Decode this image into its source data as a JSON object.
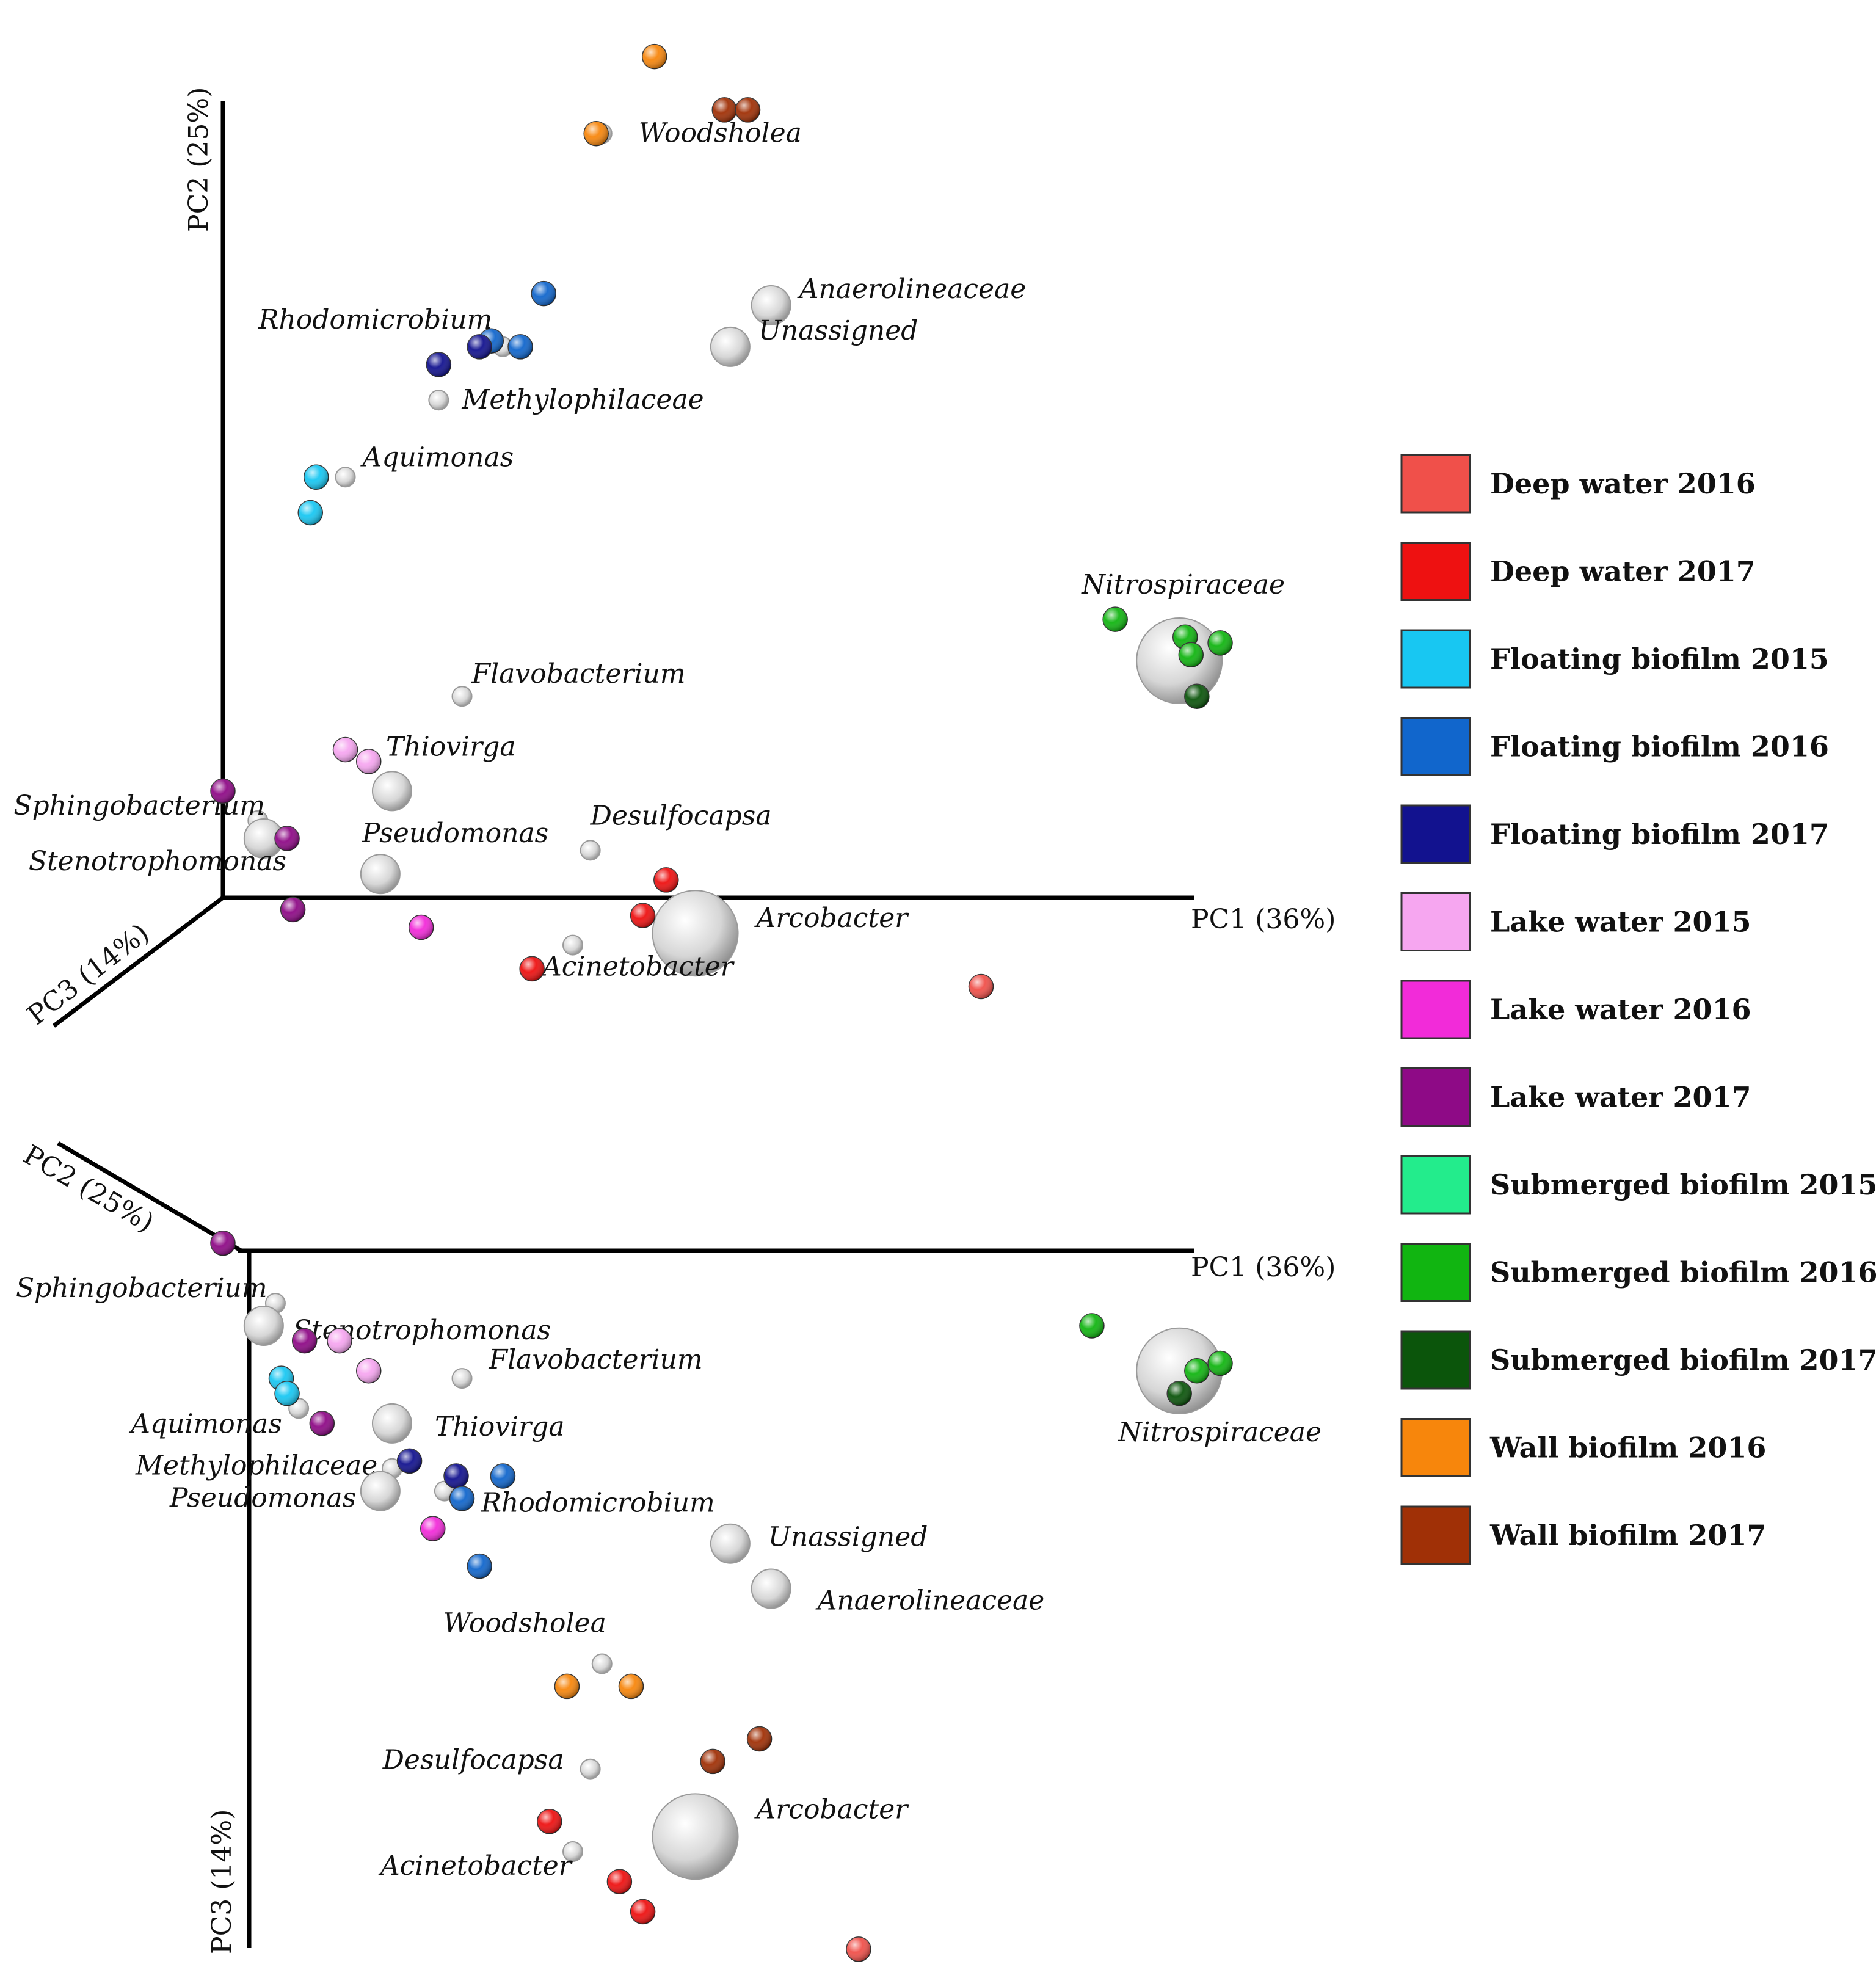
{
  "chart_data": {
    "type": "scatter",
    "subtype": "biplot-3d-pca",
    "legend": [
      {
        "key": "dw16",
        "label": "Deep water 2016",
        "color": "#f0504a"
      },
      {
        "key": "dw17",
        "label": "Deep water 2017",
        "color": "#ee1111"
      },
      {
        "key": "fb15",
        "label": "Floating biofilm 2015",
        "color": "#18c7f2"
      },
      {
        "key": "fb16",
        "label": "Floating biofilm 2016",
        "color": "#1166cc"
      },
      {
        "key": "fb17",
        "label": "Floating biofilm 2017",
        "color": "#12128f"
      },
      {
        "key": "lw15",
        "label": "Lake water 2015",
        "color": "#f6a6f0"
      },
      {
        "key": "lw16",
        "label": "Lake water 2016",
        "color": "#f22bd9"
      },
      {
        "key": "lw17",
        "label": "Lake water 2017",
        "color": "#8e0a86"
      },
      {
        "key": "sb15",
        "label": "Submerged biofilm 2015",
        "color": "#23ec8c"
      },
      {
        "key": "sb16",
        "label": "Submerged biofilm 2016",
        "color": "#11b511"
      },
      {
        "key": "sb17",
        "label": "Submerged biofilm 2017",
        "color": "#0b550b"
      },
      {
        "key": "wb16",
        "label": "Wall biofilm 2016",
        "color": "#f7860c"
      },
      {
        "key": "wb17",
        "label": "Wall biofilm 2017",
        "color": "#a03006"
      }
    ],
    "panels": [
      {
        "name": "PC1 vs PC2 (PC3 depth)",
        "axes": {
          "pc1": "PC1 (36%)",
          "pc2": "PC2 (25%)",
          "pc3": "PC3 (14%)"
        },
        "taxa": [
          {
            "label": "Woodsholea",
            "pc1": 6.5,
            "pc2": 12.9,
            "pc3": 0,
            "size": "small"
          },
          {
            "label": "Anaerolineaceae",
            "pc1": 9.4,
            "pc2": 10.0,
            "pc3": 0,
            "size": "medium"
          },
          {
            "label": "Unassigned",
            "pc1": 8.7,
            "pc2": 9.3,
            "pc3": 0,
            "size": "medium"
          },
          {
            "label": "Rhodomicrobium",
            "pc1": 4.8,
            "pc2": 9.3,
            "pc3": 0,
            "size": "small"
          },
          {
            "label": "Methylophilaceae",
            "pc1": 3.7,
            "pc2": 8.4,
            "pc3": 0,
            "size": "small"
          },
          {
            "label": "Aquimonas",
            "pc1": 2.1,
            "pc2": 7.1,
            "pc3": 0,
            "size": "small"
          },
          {
            "label": "Nitrospiraceae",
            "pc1": 16.4,
            "pc2": 4.0,
            "pc3": 0,
            "size": "large"
          },
          {
            "label": "Flavobacterium",
            "pc1": 4.1,
            "pc2": 3.4,
            "pc3": 0,
            "size": "small"
          },
          {
            "label": "Thiovirga",
            "pc1": 2.9,
            "pc2": 1.8,
            "pc3": 0,
            "size": "medium"
          },
          {
            "label": "Sphingobacterium",
            "pc1": 0.6,
            "pc2": 1.3,
            "pc3": 0,
            "size": "small"
          },
          {
            "label": "Pseudomonas",
            "pc1": 2.7,
            "pc2": 0.4,
            "pc3": 0,
            "size": "medium"
          },
          {
            "label": "Stenotrophomonas",
            "pc1": 0.7,
            "pc2": 1.0,
            "pc3": 0,
            "size": "medium"
          },
          {
            "label": "Desulfocapsa",
            "pc1": 6.3,
            "pc2": 0.8,
            "pc3": 0,
            "size": "small"
          },
          {
            "label": "Arcobacter",
            "pc1": 8.1,
            "pc2": -0.6,
            "pc3": 0,
            "size": "large"
          },
          {
            "label": "Acinetobacter",
            "pc1": 6.0,
            "pc2": -0.8,
            "pc3": 0,
            "size": "small"
          }
        ],
        "samples": [
          {
            "group": "wb16",
            "pc1": 7.4,
            "pc2": 14.2
          },
          {
            "group": "wb17",
            "pc1": 8.6,
            "pc2": 13.3
          },
          {
            "group": "wb17",
            "pc1": 9.0,
            "pc2": 13.3
          },
          {
            "group": "wb16",
            "pc1": 6.4,
            "pc2": 12.9
          },
          {
            "group": "fb16",
            "pc1": 5.5,
            "pc2": 10.2
          },
          {
            "group": "fb16",
            "pc1": 4.6,
            "pc2": 9.4
          },
          {
            "group": "fb17",
            "pc1": 4.4,
            "pc2": 9.3
          },
          {
            "group": "fb16",
            "pc1": 5.1,
            "pc2": 9.3
          },
          {
            "group": "fb17",
            "pc1": 3.7,
            "pc2": 9.0
          },
          {
            "group": "fb15",
            "pc1": 1.6,
            "pc2": 7.1
          },
          {
            "group": "fb15",
            "pc1": 1.5,
            "pc2": 6.5
          },
          {
            "group": "sb16",
            "pc1": 15.3,
            "pc2": 4.7
          },
          {
            "group": "sb16",
            "pc1": 16.5,
            "pc2": 4.4
          },
          {
            "group": "sb16",
            "pc1": 17.1,
            "pc2": 4.3
          },
          {
            "group": "sb16",
            "pc1": 16.6,
            "pc2": 4.1
          },
          {
            "group": "sb17",
            "pc1": 16.7,
            "pc2": 3.4
          },
          {
            "group": "lw15",
            "pc1": 2.1,
            "pc2": 2.5
          },
          {
            "group": "lw15",
            "pc1": 2.5,
            "pc2": 2.3
          },
          {
            "group": "lw17",
            "pc1": 0.0,
            "pc2": 1.8
          },
          {
            "group": "lw17",
            "pc1": 1.1,
            "pc2": 1.0
          },
          {
            "group": "dw17",
            "pc1": 7.6,
            "pc2": 0.3
          },
          {
            "group": "dw17",
            "pc1": 7.2,
            "pc2": -0.3
          },
          {
            "group": "lw17",
            "pc1": 1.2,
            "pc2": -0.2
          },
          {
            "group": "lw16",
            "pc1": 3.4,
            "pc2": -0.5
          },
          {
            "group": "dw17",
            "pc1": 5.3,
            "pc2": -1.2
          },
          {
            "group": "dw16",
            "pc1": 13.0,
            "pc2": -1.5
          }
        ]
      },
      {
        "name": "PC1 vs PC3 (PC2 depth)",
        "axes": {
          "pc1": "PC1 (36%)",
          "pc2": "PC2 (25%)",
          "pc3": "PC3 (14%)"
        },
        "taxa": [
          {
            "label": "Sphingobacterium",
            "pc1": 0.9,
            "pc3": -0.7,
            "size": "small"
          },
          {
            "label": "Stenotrophomonas",
            "pc1": 0.7,
            "pc3": -1.0,
            "size": "medium"
          },
          {
            "label": "Flavobacterium",
            "pc1": 4.1,
            "pc3": -1.7,
            "size": "small"
          },
          {
            "label": "Aquimonas",
            "pc1": 1.3,
            "pc3": -2.1,
            "size": "small"
          },
          {
            "label": "Thiovirga",
            "pc1": 2.9,
            "pc3": -2.3,
            "size": "medium"
          },
          {
            "label": "Methylophilaceae",
            "pc1": 2.9,
            "pc3": -2.9,
            "size": "small"
          },
          {
            "label": "Pseudomonas",
            "pc1": 2.7,
            "pc3": -3.2,
            "size": "medium"
          },
          {
            "label": "Rhodomicrobium",
            "pc1": 3.8,
            "pc3": -3.2,
            "size": "small"
          },
          {
            "label": "Nitrospiraceae",
            "pc1": 16.4,
            "pc3": -1.6,
            "size": "large"
          },
          {
            "label": "Unassigned",
            "pc1": 8.7,
            "pc3": -3.9,
            "size": "medium"
          },
          {
            "label": "Anaerolineaceae",
            "pc1": 9.4,
            "pc3": -4.5,
            "size": "medium"
          },
          {
            "label": "Woodsholea",
            "pc1": 6.5,
            "pc3": -5.5,
            "size": "small"
          },
          {
            "label": "Desulfocapsa",
            "pc1": 6.3,
            "pc3": -6.9,
            "size": "small"
          },
          {
            "label": "Arcobacter",
            "pc1": 8.1,
            "pc3": -7.8,
            "size": "large"
          },
          {
            "label": "Acinetobacter",
            "pc1": 6.0,
            "pc3": -8.0,
            "size": "small"
          }
        ],
        "samples": [
          {
            "group": "lw17",
            "pc1": 0.0,
            "pc3": 0.1
          },
          {
            "group": "lw17",
            "pc1": 1.4,
            "pc3": -1.2
          },
          {
            "group": "lw15",
            "pc1": 2.0,
            "pc3": -1.2
          },
          {
            "group": "lw15",
            "pc1": 2.5,
            "pc3": -1.6
          },
          {
            "group": "fb15",
            "pc1": 1.0,
            "pc3": -1.7
          },
          {
            "group": "fb15",
            "pc1": 1.1,
            "pc3": -1.9
          },
          {
            "group": "lw17",
            "pc1": 1.7,
            "pc3": -2.3
          },
          {
            "group": "fb17",
            "pc1": 3.2,
            "pc3": -2.8
          },
          {
            "group": "fb17",
            "pc1": 4.0,
            "pc3": -3.0
          },
          {
            "group": "fb16",
            "pc1": 4.8,
            "pc3": -3.0
          },
          {
            "group": "fb16",
            "pc1": 4.1,
            "pc3": -3.3
          },
          {
            "group": "lw16",
            "pc1": 3.6,
            "pc3": -3.7
          },
          {
            "group": "fb16",
            "pc1": 4.4,
            "pc3": -4.2
          },
          {
            "group": "sb16",
            "pc1": 14.9,
            "pc3": -1.0
          },
          {
            "group": "sb16",
            "pc1": 16.7,
            "pc3": -1.6
          },
          {
            "group": "sb16",
            "pc1": 17.1,
            "pc3": -1.5
          },
          {
            "group": "sb17",
            "pc1": 16.4,
            "pc3": -1.9
          },
          {
            "group": "wb16",
            "pc1": 5.9,
            "pc3": -5.8
          },
          {
            "group": "wb16",
            "pc1": 7.0,
            "pc3": -5.8
          },
          {
            "group": "wb17",
            "pc1": 9.2,
            "pc3": -6.5
          },
          {
            "group": "wb17",
            "pc1": 8.4,
            "pc3": -6.8
          },
          {
            "group": "dw17",
            "pc1": 5.6,
            "pc3": -7.6
          },
          {
            "group": "dw17",
            "pc1": 6.8,
            "pc3": -8.4
          },
          {
            "group": "dw17",
            "pc1": 7.2,
            "pc3": -8.8
          },
          {
            "group": "dw16",
            "pc1": 10.9,
            "pc3": -9.3
          }
        ]
      }
    ]
  }
}
